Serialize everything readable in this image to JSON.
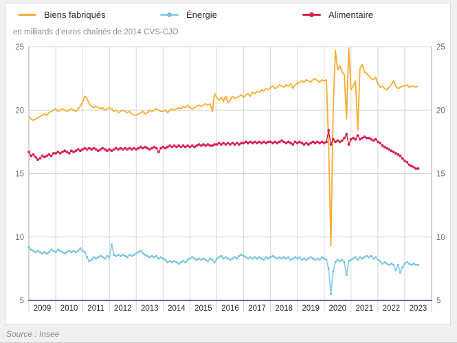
{
  "source": {
    "text": "Source : Insee"
  },
  "chart_data": {
    "type": "line",
    "unit_label": "en milliards d'euros chaînés de 2014 CVS-CJO",
    "frequency": "monthly",
    "x_start": "2009-01",
    "x_tick_labels": [
      "2009",
      "2010",
      "2011",
      "2012",
      "2013",
      "2014",
      "2015",
      "2016",
      "2017",
      "2018",
      "2019",
      "2020",
      "2021",
      "2022",
      "2023"
    ],
    "y_ticks": [
      5,
      10,
      15,
      20,
      25
    ],
    "ylim": [
      5,
      25
    ],
    "grid": true,
    "legend_position": "top",
    "colors": {
      "grid": "#d6d6d6",
      "axis": "#a8a8a8",
      "baseline": "#6a6aab",
      "tick_label": "#707070",
      "year_label": "#2a2a2a",
      "year_separator": "#cccccc"
    },
    "series": [
      {
        "id": "biens-fabriques",
        "name": "Biens fabriqués",
        "color": "#f9ae34",
        "marker": false,
        "marker_color": "#f9ae34",
        "values": [
          19.5,
          19.3,
          19.2,
          19.3,
          19.4,
          19.5,
          19.6,
          19.7,
          19.6,
          19.8,
          19.9,
          20.0,
          20.1,
          19.9,
          20.0,
          20.1,
          20.0,
          19.9,
          20.0,
          20.1,
          20.0,
          19.9,
          20.1,
          20.3,
          20.6,
          21.1,
          20.9,
          20.5,
          20.3,
          20.2,
          20.3,
          20.2,
          20.1,
          20.2,
          20.0,
          20.1,
          20.2,
          20.1,
          19.9,
          20.0,
          19.8,
          19.9,
          20.0,
          19.9,
          19.8,
          19.9,
          19.7,
          19.6,
          19.6,
          19.7,
          19.8,
          19.9,
          19.7,
          19.8,
          20.0,
          19.9,
          20.0,
          20.1,
          20.0,
          19.9,
          19.9,
          20.0,
          19.8,
          20.0,
          20.1,
          20.0,
          20.1,
          20.2,
          20.1,
          20.3,
          20.2,
          20.4,
          20.2,
          20.1,
          20.2,
          20.3,
          20.4,
          20.3,
          20.4,
          20.5,
          20.4,
          20.5,
          19.9,
          21.3,
          21.0,
          20.8,
          21.0,
          20.7,
          21.1,
          20.6,
          20.8,
          21.1,
          20.9,
          21.0,
          21.1,
          21.2,
          21.0,
          21.2,
          21.3,
          21.1,
          21.4,
          21.3,
          21.5,
          21.4,
          21.6,
          21.5,
          21.7,
          21.6,
          21.8,
          21.9,
          21.7,
          21.8,
          22.0,
          21.9,
          21.8,
          22.0,
          21.9,
          22.1,
          21.7,
          22.0,
          22.1,
          22.2,
          22.3,
          22.2,
          22.4,
          22.3,
          22.2,
          22.4,
          22.5,
          22.3,
          22.2,
          22.4,
          22.3,
          22.4,
          17.3,
          9.3,
          20.0,
          24.7,
          23.2,
          23.5,
          23.0,
          22.8,
          19.3,
          24.9,
          21.6,
          21.9,
          22.3,
          18.4,
          23.3,
          23.6,
          23.0,
          22.9,
          22.7,
          22.5,
          22.4,
          22.6,
          22.1,
          21.8,
          21.9,
          21.7,
          21.6,
          21.8,
          22.0,
          22.3,
          21.9,
          21.7,
          21.8,
          21.9,
          21.9,
          22.0,
          21.8,
          21.9,
          21.9,
          21.8,
          21.9
        ]
      },
      {
        "id": "energie",
        "name": "Énergie",
        "color": "#8ccfe9",
        "marker": true,
        "marker_color": "#79c5e3",
        "values": [
          9.2,
          9.0,
          8.9,
          8.8,
          8.9,
          8.8,
          8.7,
          8.8,
          8.7,
          8.8,
          9.0,
          8.9,
          8.8,
          9.0,
          8.9,
          8.8,
          8.7,
          8.8,
          8.9,
          8.8,
          8.9,
          8.8,
          8.9,
          9.1,
          8.9,
          8.8,
          8.4,
          8.1,
          8.2,
          8.4,
          8.3,
          8.4,
          8.5,
          8.4,
          8.3,
          8.5,
          8.4,
          9.4,
          8.6,
          8.5,
          8.6,
          8.5,
          8.6,
          8.5,
          8.4,
          8.6,
          8.5,
          8.6,
          8.7,
          8.8,
          8.9,
          8.7,
          8.6,
          8.5,
          8.4,
          8.5,
          8.4,
          8.5,
          8.3,
          8.4,
          8.3,
          8.2,
          8.0,
          8.1,
          8.0,
          8.1,
          8.0,
          7.9,
          8.0,
          8.1,
          8.0,
          8.2,
          8.3,
          8.4,
          8.3,
          8.2,
          8.3,
          8.2,
          8.3,
          8.2,
          8.1,
          8.3,
          8.2,
          8.0,
          8.3,
          8.4,
          8.5,
          8.3,
          8.4,
          8.3,
          8.2,
          8.3,
          8.4,
          8.3,
          8.5,
          8.6,
          8.5,
          8.4,
          8.3,
          8.4,
          8.3,
          8.4,
          8.3,
          8.4,
          8.3,
          8.2,
          8.4,
          8.3,
          8.4,
          8.5,
          8.4,
          8.3,
          8.4,
          8.3,
          8.4,
          8.3,
          8.4,
          8.2,
          8.3,
          8.4,
          8.3,
          8.4,
          8.2,
          8.3,
          8.2,
          8.3,
          8.4,
          8.3,
          8.2,
          8.3,
          8.2,
          8.4,
          8.3,
          8.2,
          7.5,
          5.5,
          7.3,
          8.0,
          8.2,
          8.1,
          8.2,
          8.0,
          7.0,
          8.1,
          8.2,
          8.3,
          8.4,
          8.2,
          8.4,
          8.3,
          8.4,
          8.5,
          8.4,
          8.5,
          8.3,
          8.4,
          8.2,
          8.1,
          7.9,
          8.0,
          7.9,
          7.8,
          7.9,
          7.8,
          7.4,
          7.8,
          7.2,
          7.6,
          7.9,
          8.0,
          7.9,
          7.8,
          7.9,
          7.8,
          7.8
        ]
      },
      {
        "id": "alimentaire",
        "name": "Alimentaire",
        "color": "#d8214d",
        "marker": true,
        "marker_color": "#d8214d",
        "values": [
          16.7,
          16.4,
          16.5,
          16.3,
          16.1,
          16.2,
          16.4,
          16.3,
          16.4,
          16.5,
          16.4,
          16.6,
          16.6,
          16.7,
          16.6,
          16.7,
          16.8,
          16.7,
          16.6,
          16.8,
          16.7,
          16.8,
          16.9,
          16.8,
          16.9,
          17.0,
          16.9,
          17.0,
          16.9,
          17.0,
          16.9,
          16.8,
          16.9,
          17.0,
          16.9,
          16.8,
          16.9,
          16.8,
          16.9,
          17.0,
          16.9,
          17.0,
          16.9,
          17.0,
          16.9,
          17.0,
          16.9,
          17.0,
          16.9,
          17.0,
          17.1,
          17.0,
          17.1,
          17.0,
          16.9,
          17.0,
          17.1,
          17.0,
          16.7,
          17.0,
          17.1,
          17.0,
          17.1,
          17.2,
          17.1,
          17.2,
          17.1,
          17.2,
          17.1,
          17.2,
          17.1,
          17.2,
          17.1,
          17.2,
          17.1,
          17.2,
          17.3,
          17.2,
          17.3,
          17.2,
          17.3,
          17.2,
          17.2,
          17.3,
          17.3,
          17.4,
          17.3,
          17.4,
          17.3,
          17.4,
          17.3,
          17.4,
          17.3,
          17.4,
          17.3,
          17.4,
          17.4,
          17.5,
          17.4,
          17.5,
          17.4,
          17.5,
          17.4,
          17.5,
          17.4,
          17.5,
          17.4,
          17.5,
          17.5,
          17.4,
          17.5,
          17.4,
          17.5,
          17.6,
          17.5,
          17.4,
          17.5,
          17.4,
          17.3,
          17.5,
          17.4,
          17.5,
          17.4,
          17.3,
          17.4,
          17.3,
          17.4,
          17.5,
          17.4,
          17.5,
          17.4,
          17.5,
          17.4,
          17.5,
          18.4,
          17.3,
          17.7,
          17.5,
          17.6,
          17.5,
          17.6,
          17.8,
          18.1,
          17.3,
          17.7,
          17.8,
          17.7,
          18.0,
          17.7,
          17.8,
          17.9,
          17.8,
          17.8,
          17.7,
          17.6,
          17.7,
          17.5,
          17.4,
          17.2,
          17.1,
          17.0,
          16.9,
          16.8,
          16.7,
          16.6,
          16.5,
          16.4,
          16.2,
          16.0,
          15.9,
          15.7,
          15.6,
          15.5,
          15.4,
          15.4
        ]
      }
    ]
  }
}
